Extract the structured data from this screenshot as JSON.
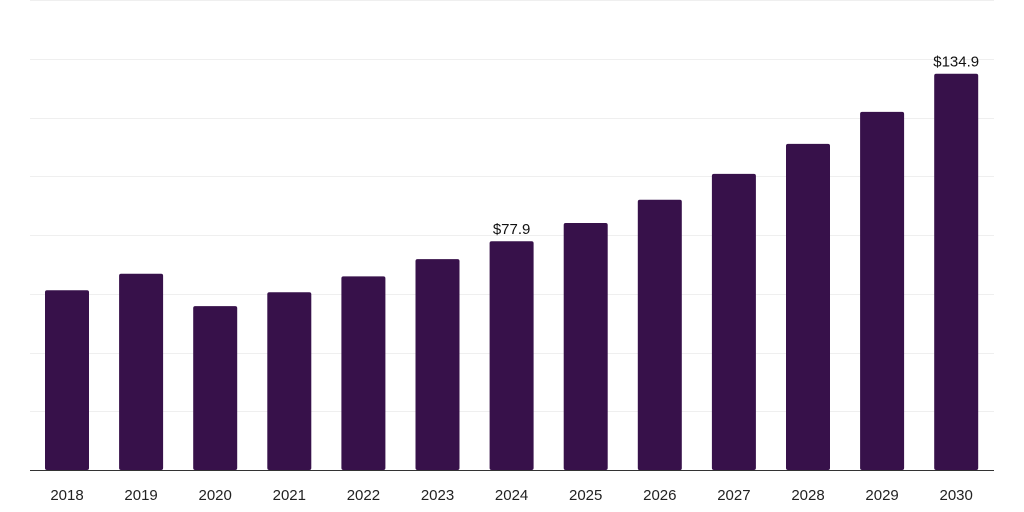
{
  "chart_data": {
    "type": "bar",
    "title": "",
    "xlabel": "",
    "ylabel": "",
    "categories": [
      "2018",
      "2019",
      "2020",
      "2021",
      "2022",
      "2023",
      "2024",
      "2025",
      "2026",
      "2027",
      "2028",
      "2029",
      "2030"
    ],
    "values": [
      61.2,
      66.8,
      55.8,
      60.5,
      65.9,
      71.8,
      77.9,
      84.1,
      92.0,
      100.8,
      111.0,
      121.9,
      134.9
    ],
    "data_labels": [
      {
        "index": 6,
        "text": "$77.9"
      },
      {
        "index": 12,
        "text": "$134.9"
      }
    ],
    "ylim": [
      0,
      160
    ],
    "grid_step": 20,
    "grid": true,
    "bar_color": "#37114a",
    "legend": "none"
  }
}
